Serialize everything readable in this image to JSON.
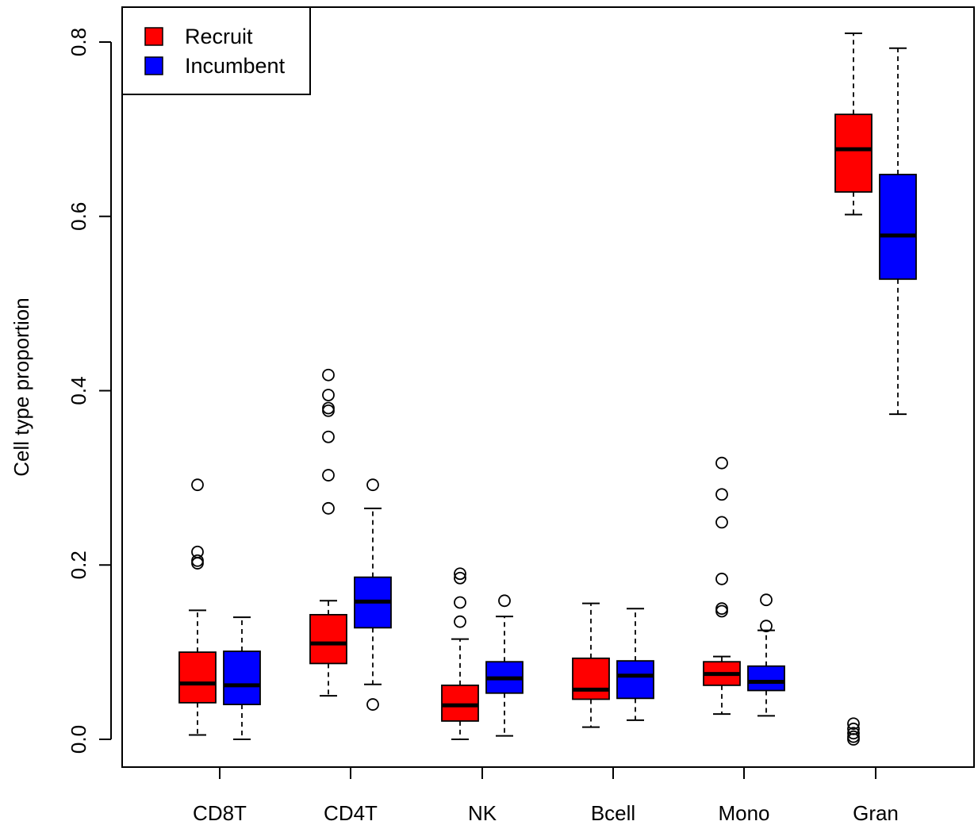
{
  "chart_data": {
    "type": "boxplot",
    "ylabel": "Cell type proportion",
    "xlabel": "",
    "ylim": [
      -0.06,
      0.84
    ],
    "yticks": [
      "0.0",
      "0.2",
      "0.4",
      "0.6",
      "0.8"
    ],
    "ytick_values": [
      0.0,
      0.2,
      0.4,
      0.6,
      0.8
    ],
    "categories": [
      "CD8T",
      "CD4T",
      "NK",
      "Bcell",
      "Mono",
      "Gran"
    ],
    "legend": {
      "position": "top-left",
      "entries": [
        "Recruit",
        "Incumbent"
      ]
    },
    "colors": {
      "Recruit": "#ff0000",
      "Incumbent": "#0000ff"
    },
    "series": [
      {
        "name": "Recruit",
        "boxes": [
          {
            "min": 0.005,
            "q1": 0.042,
            "median": 0.064,
            "q3": 0.1,
            "max": 0.148,
            "outliers": [
              0.292,
              0.215,
              0.205,
              0.202
            ]
          },
          {
            "min": 0.05,
            "q1": 0.087,
            "median": 0.11,
            "q3": 0.143,
            "max": 0.159,
            "outliers": [
              0.418,
              0.395,
              0.38,
              0.377,
              0.347,
              0.303,
              0.265
            ]
          },
          {
            "min": 0.0,
            "q1": 0.021,
            "median": 0.039,
            "q3": 0.062,
            "max": 0.115,
            "outliers": [
              0.19,
              0.185,
              0.157,
              0.135
            ]
          },
          {
            "min": 0.014,
            "q1": 0.046,
            "median": 0.057,
            "q3": 0.093,
            "max": 0.156,
            "outliers": []
          },
          {
            "min": 0.029,
            "q1": 0.062,
            "median": 0.075,
            "q3": 0.089,
            "max": 0.095,
            "outliers": [
              0.317,
              0.281,
              0.249,
              0.184,
              0.15,
              0.147
            ]
          },
          {
            "min": 0.602,
            "q1": 0.628,
            "median": 0.677,
            "q3": 0.717,
            "max": 0.81,
            "outliers": [
              0.018,
              0.012,
              0.007,
              0.003,
              0.0
            ]
          }
        ]
      },
      {
        "name": "Incumbent",
        "boxes": [
          {
            "min": 0.0,
            "q1": 0.04,
            "median": 0.062,
            "q3": 0.101,
            "max": 0.14,
            "outliers": []
          },
          {
            "min": 0.063,
            "q1": 0.128,
            "median": 0.158,
            "q3": 0.186,
            "max": 0.265,
            "outliers": [
              0.292,
              0.04
            ]
          },
          {
            "min": 0.004,
            "q1": 0.053,
            "median": 0.07,
            "q3": 0.089,
            "max": 0.141,
            "outliers": [
              0.159
            ]
          },
          {
            "min": 0.022,
            "q1": 0.047,
            "median": 0.073,
            "q3": 0.09,
            "max": 0.15,
            "outliers": []
          },
          {
            "min": 0.027,
            "q1": 0.056,
            "median": 0.066,
            "q3": 0.084,
            "max": 0.125,
            "outliers": [
              0.16,
              0.13
            ]
          },
          {
            "min": 0.373,
            "q1": 0.528,
            "median": 0.578,
            "q3": 0.648,
            "max": 0.793,
            "outliers": []
          }
        ]
      }
    ]
  }
}
